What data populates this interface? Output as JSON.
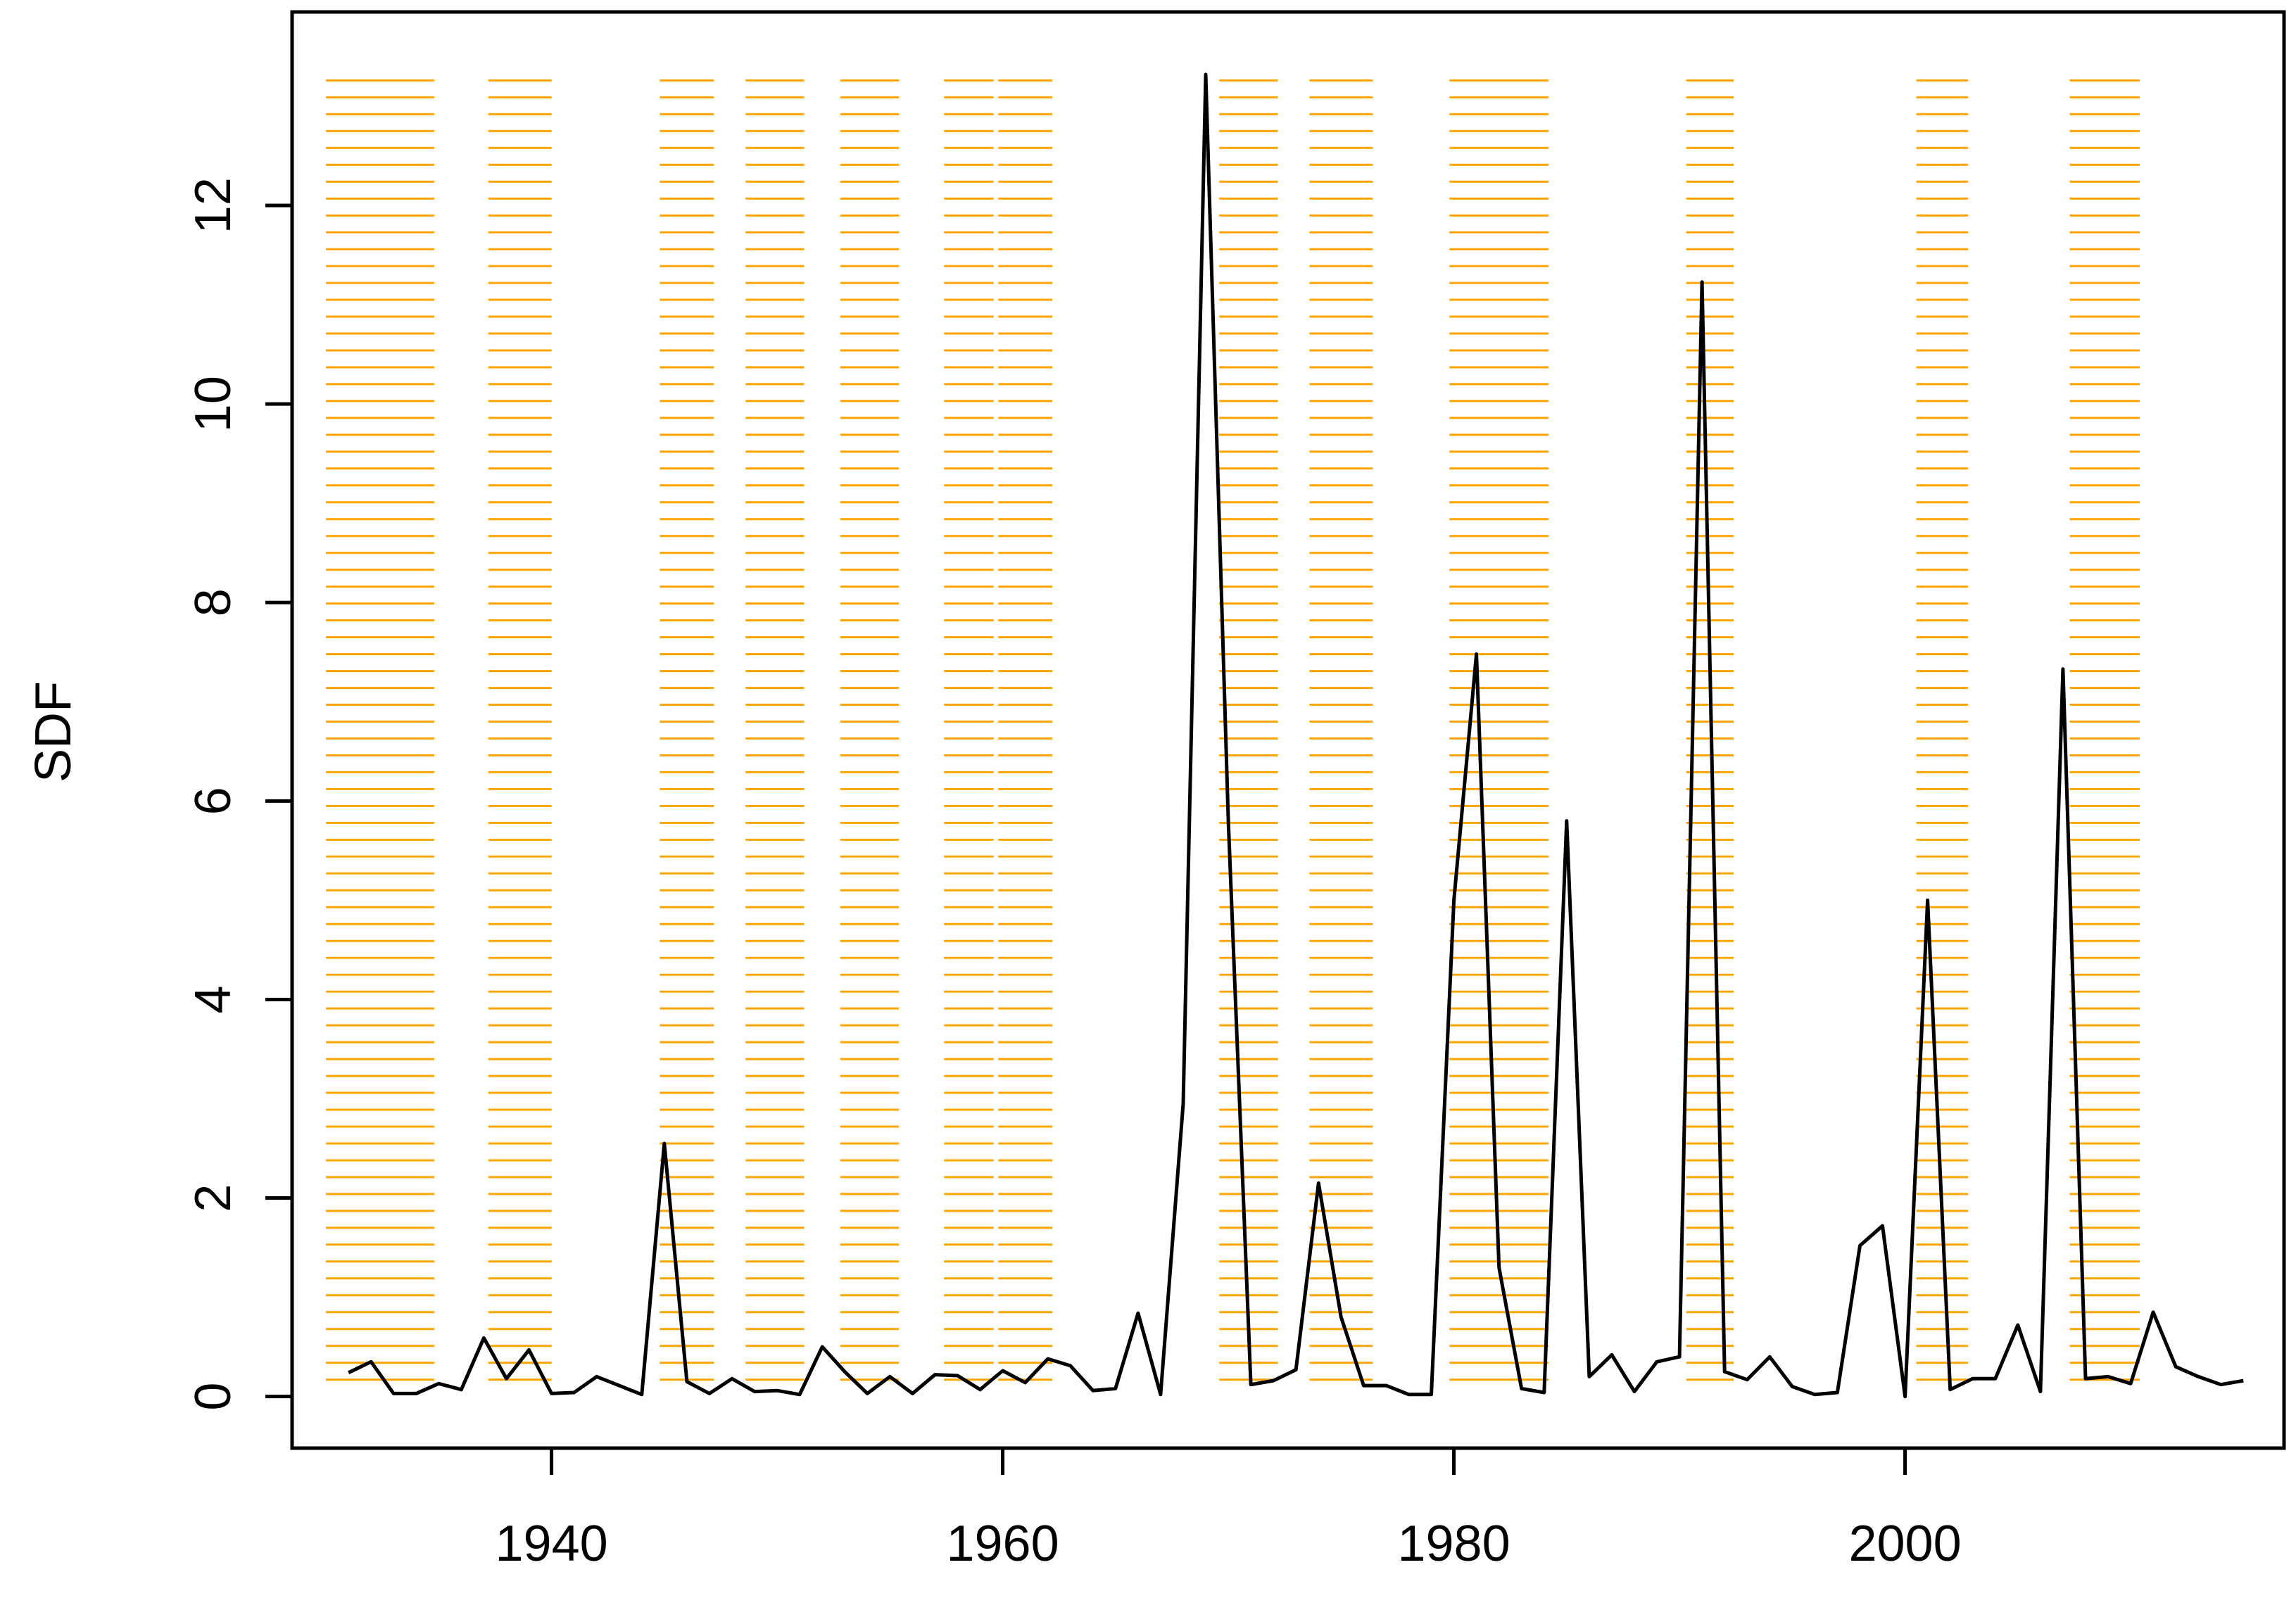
{
  "chart_data": {
    "type": "line",
    "title": "",
    "xlabel": "",
    "ylabel": "SDF",
    "xlim": [
      1928.5,
      2016.8
    ],
    "ylim": [
      -0.52,
      13.95
    ],
    "xticks": [
      1940,
      1960,
      1980,
      2000
    ],
    "yticks": [
      0,
      2,
      4,
      6,
      8,
      10,
      12
    ],
    "grid": false,
    "legend": "none",
    "colors": {
      "line": "#000000",
      "band": "#FFA500",
      "axis": "#000000"
    },
    "band_lines": {
      "y_min": 0.17,
      "y_max": 13.32,
      "step": 0.17
    },
    "bands": [
      [
        1930.0,
        1934.8
      ],
      [
        1937.2,
        1940.0
      ],
      [
        1944.8,
        1947.2
      ],
      [
        1948.6,
        1951.2
      ],
      [
        1952.8,
        1955.4
      ],
      [
        1957.4,
        1959.6
      ],
      [
        1959.8,
        1962.2
      ],
      [
        1969.6,
        1972.2
      ],
      [
        1973.6,
        1976.4
      ],
      [
        1979.8,
        1984.2
      ],
      [
        1990.3,
        1992.4
      ],
      [
        2000.5,
        2002.8
      ],
      [
        2007.3,
        2010.4
      ]
    ],
    "series": [
      {
        "x": [
          1931,
          1932,
          1933,
          1934,
          1935,
          1936,
          1937,
          1938,
          1939,
          1940,
          1941,
          1942,
          1943,
          1944,
          1945,
          1946,
          1947,
          1948,
          1949,
          1950,
          1951,
          1952,
          1953,
          1954,
          1955,
          1956,
          1957,
          1958,
          1959,
          1960,
          1961,
          1962,
          1963,
          1964,
          1965,
          1966,
          1967,
          1968,
          1969,
          1970,
          1971,
          1972,
          1973,
          1974,
          1975,
          1976,
          1977,
          1978,
          1979,
          1980,
          1981,
          1982,
          1983,
          1984,
          1985,
          1986,
          1987,
          1988,
          1989,
          1990,
          1991,
          1992,
          1993,
          1994,
          1995,
          1996,
          1997,
          1998,
          1999,
          2000,
          2001,
          2002,
          2003,
          2004,
          2005,
          2006,
          2007,
          2008,
          2009,
          2010,
          2011,
          2012,
          2013,
          2014,
          2015
        ],
        "values": [
          0.24,
          0.35,
          0.03,
          0.03,
          0.13,
          0.07,
          0.59,
          0.18,
          0.47,
          0.03,
          0.04,
          0.2,
          0.11,
          0.02,
          2.55,
          0.15,
          0.03,
          0.18,
          0.05,
          0.06,
          0.02,
          0.5,
          0.25,
          0.03,
          0.2,
          0.03,
          0.22,
          0.21,
          0.07,
          0.26,
          0.14,
          0.38,
          0.31,
          0.06,
          0.08,
          0.84,
          0.02,
          2.95,
          13.32,
          5.8,
          0.12,
          0.16,
          0.27,
          2.15,
          0.8,
          0.11,
          0.11,
          0.02,
          0.02,
          5.0,
          7.48,
          1.3,
          0.08,
          0.04,
          5.8,
          0.2,
          0.42,
          0.05,
          0.35,
          0.4,
          11.23,
          0.25,
          0.17,
          0.4,
          0.1,
          0.02,
          0.04,
          1.52,
          1.72,
          0.0,
          5.0,
          0.07,
          0.18,
          0.18,
          0.72,
          0.05,
          7.33,
          0.18,
          0.2,
          0.13,
          0.85,
          0.3,
          0.2,
          0.12,
          0.16
        ]
      }
    ]
  }
}
